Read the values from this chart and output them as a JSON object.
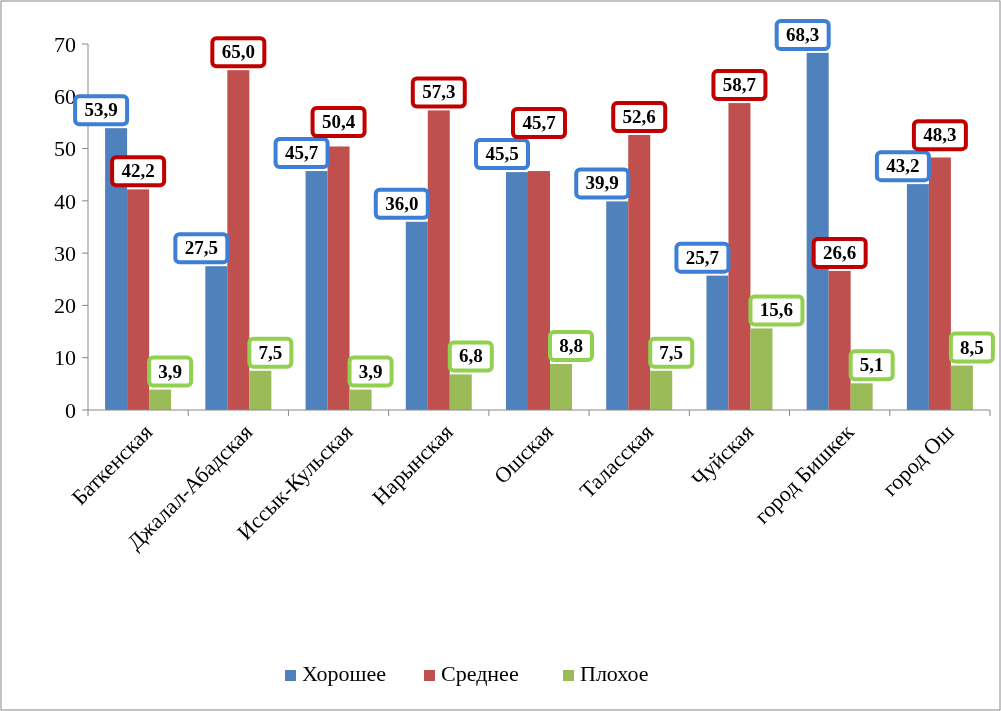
{
  "chart_data": {
    "type": "bar",
    "categories": [
      "Баткенская",
      "Джалал-Абадская",
      "Иссык-Кульская",
      "Нарынская",
      "Ошская",
      "Таласская",
      "Чуйская",
      "город Бишкек",
      "город Ош"
    ],
    "series": [
      {
        "name": "Хорошее",
        "color": "#4f81bd",
        "values": [
          53.9,
          27.5,
          45.7,
          36.0,
          45.5,
          39.9,
          25.7,
          68.3,
          43.2
        ],
        "value_labels": [
          "53,9",
          "27,5",
          "45,7",
          "36,0",
          "45,5",
          "39,9",
          "25,7",
          "68,3",
          "43,2"
        ]
      },
      {
        "name": "Среднее",
        "color": "#c0504d",
        "values": [
          42.2,
          65.0,
          50.4,
          57.3,
          45.7,
          52.6,
          58.7,
          26.6,
          48.3
        ],
        "value_labels": [
          "42,2",
          "65,0",
          "50,4",
          "57,3",
          "45,7",
          "52,6",
          "58,7",
          "26,6",
          "48,3"
        ]
      },
      {
        "name": "Плохое",
        "color": "#9bbb59",
        "values": [
          3.9,
          7.5,
          3.9,
          6.8,
          8.8,
          7.5,
          15.6,
          5.1,
          8.5
        ],
        "value_labels": [
          "3,9",
          "7,5",
          "3,9",
          "6,8",
          "8,8",
          "7,5",
          "15,6",
          "5,1",
          "8,5"
        ]
      }
    ],
    "ylim": [
      0,
      70
    ],
    "yticks": [
      0,
      10,
      20,
      30,
      40,
      50,
      60,
      70
    ],
    "grid": false,
    "legend": "bottom"
  }
}
